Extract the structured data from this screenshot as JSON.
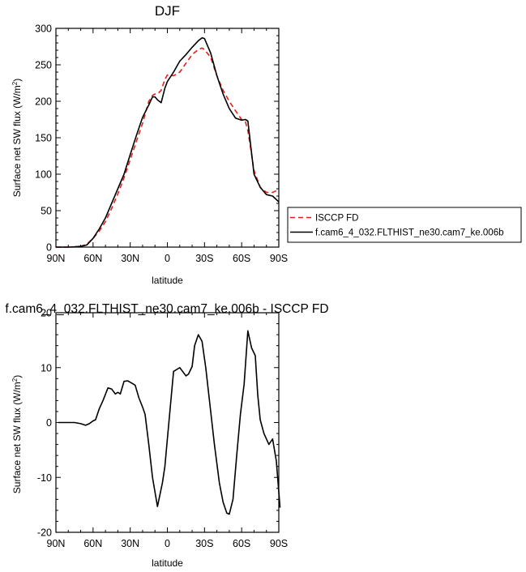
{
  "chart_data": [
    {
      "type": "line",
      "title": "DJF",
      "xlabel": "latitude",
      "ylabel_main": "Surface net SW flux (W/m",
      "ylabel_sup": "2",
      "ylabel_tail": ")",
      "xlim": [
        -90,
        90
      ],
      "ylim": [
        0,
        300
      ],
      "xticks": [
        -90,
        -60,
        -30,
        0,
        30,
        60,
        90
      ],
      "xtick_labels": [
        "90N",
        "60N",
        "30N",
        "0",
        "30S",
        "60S",
        "90S"
      ],
      "yticks": [
        0,
        50,
        100,
        150,
        200,
        250,
        300
      ],
      "ytick_labels": [
        "0",
        "50",
        "100",
        "150",
        "200",
        "250",
        "300"
      ],
      "legend": {
        "placement": "right",
        "entries": [
          {
            "label": "ISCCP FD",
            "color": "#e0201b",
            "dash": true
          },
          {
            "label": "f.cam6_4_032.FLTHIST_ne30.cam7_ke.006b",
            "color": "#000000",
            "dash": false
          }
        ]
      },
      "series": [
        {
          "name": "ISCCP FD",
          "color": "#e0201b",
          "dash": true,
          "x": [
            -90,
            -85,
            -80,
            -75,
            -70,
            -65,
            -60,
            -55,
            -50,
            -45,
            -40,
            -35,
            -30,
            -25,
            -20,
            -15,
            -12,
            -10,
            -8,
            -5,
            -2,
            0,
            5,
            10,
            15,
            20,
            25,
            28,
            30,
            35,
            40,
            45,
            50,
            55,
            60,
            63,
            65,
            70,
            75,
            80,
            85,
            90
          ],
          "y": [
            0,
            0,
            0,
            0.3,
            1,
            4,
            12,
            22,
            35,
            53,
            73,
            95,
            120,
            145,
            170,
            200,
            208,
            210,
            210,
            215,
            230,
            236,
            235,
            240,
            252,
            264,
            271,
            273,
            271,
            260,
            235,
            215,
            200,
            187,
            175,
            172,
            160,
            105,
            82,
            75,
            75,
            79
          ]
        },
        {
          "name": "f.cam6_4_032.FLTHIST_ne30.cam7_ke.006b",
          "color": "#000000",
          "dash": false,
          "x": [
            -90,
            -85,
            -80,
            -75,
            -70,
            -65,
            -60,
            -55,
            -50,
            -45,
            -40,
            -35,
            -30,
            -25,
            -20,
            -15,
            -12,
            -10,
            -8,
            -5,
            -2,
            0,
            5,
            10,
            15,
            20,
            25,
            28,
            30,
            35,
            40,
            45,
            50,
            55,
            60,
            63,
            65,
            70,
            75,
            80,
            85,
            90
          ],
          "y": [
            0,
            0,
            0,
            0.3,
            1,
            3,
            12,
            25,
            40,
            60,
            80,
            100,
            127,
            153,
            178,
            195,
            206,
            206,
            202,
            198,
            218,
            227,
            240,
            255,
            264,
            274,
            283,
            287,
            286,
            266,
            235,
            210,
            190,
            177,
            174,
            175,
            173,
            100,
            82,
            72,
            70,
            62
          ]
        }
      ]
    },
    {
      "type": "line",
      "title": "f.cam6_4_032.FLTHIST_ne30.cam7_ke.006b - ISCCP FD",
      "xlabel": "latitude",
      "ylabel_main": "Surface net SW flux (W/m",
      "ylabel_sup": "2",
      "ylabel_tail": ")",
      "xlim": [
        -90,
        90
      ],
      "ylim": [
        -20,
        20
      ],
      "xticks": [
        -90,
        -60,
        -30,
        0,
        30,
        60,
        90
      ],
      "xtick_labels": [
        "90N",
        "60N",
        "30N",
        "0",
        "30S",
        "60S",
        "90S"
      ],
      "yticks": [
        -20,
        -10,
        0,
        10,
        20
      ],
      "ytick_labels": [
        "-20",
        "-10",
        "0",
        "10",
        "20"
      ],
      "series": [
        {
          "color": "#000000",
          "dash": false,
          "x": [
            -88,
            -80,
            -75,
            -70,
            -66,
            -63,
            -60,
            -58,
            -55,
            -52,
            -48,
            -45,
            -42,
            -40,
            -38,
            -35,
            -32,
            -29,
            -26,
            -23,
            -20,
            -18,
            -15,
            -12,
            -8,
            -4,
            -2,
            0,
            5,
            10,
            12,
            15,
            17,
            20,
            22,
            25,
            28,
            31,
            35,
            38,
            42,
            45,
            48,
            50,
            53,
            56,
            59,
            62,
            65,
            68,
            71,
            73,
            75,
            78,
            82,
            85,
            88,
            91
          ],
          "y": [
            0,
            0,
            0,
            -0.2,
            -0.5,
            -0.2,
            0.3,
            0.5,
            2.5,
            4,
            6.3,
            6.1,
            5.2,
            5.5,
            5.2,
            7.5,
            7.6,
            7.2,
            6.8,
            4.5,
            2.8,
            1.5,
            -4,
            -10,
            -15.3,
            -11,
            -8,
            -3,
            9.3,
            10,
            9.4,
            8.5,
            8.8,
            10.2,
            14,
            16,
            14.8,
            10,
            2,
            -4,
            -11,
            -14.5,
            -16.5,
            -16.7,
            -14,
            -6,
            1.5,
            7,
            16.7,
            13.6,
            12.2,
            5,
            0.5,
            -2,
            -4,
            -3,
            -7,
            -15.5
          ]
        }
      ]
    }
  ]
}
